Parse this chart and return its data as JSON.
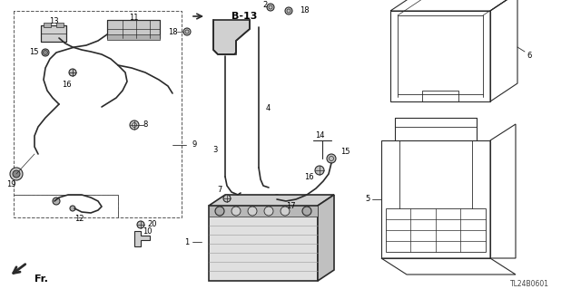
{
  "bg_color": "#ffffff",
  "diagram_code": "TL24B0601",
  "ref_code": "B-13",
  "line_color": "#2a2a2a",
  "gray_fill": "#e8e8e8",
  "light_gray": "#f0f0f0"
}
